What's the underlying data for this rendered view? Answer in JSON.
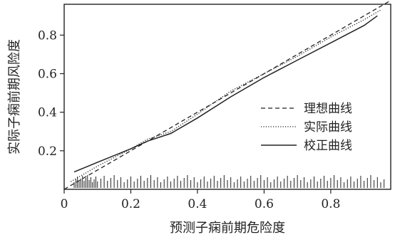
{
  "chart_data": {
    "type": "line",
    "title": "",
    "xlabel": "预测子痫前期危险度",
    "ylabel": "实际子痫前期风险度",
    "xlim": [
      0,
      0.98
    ],
    "ylim": [
      0,
      0.96
    ],
    "x_ticks": [
      0.0,
      0.2,
      0.4,
      0.6,
      0.8
    ],
    "x_tick_labels": [
      "0",
      "0.2",
      "0.4",
      "0.6",
      "0.8"
    ],
    "y_ticks": [
      0.2,
      0.4,
      0.6,
      0.8
    ],
    "y_tick_labels": [
      "0.2",
      "0.4",
      "0.6",
      "0.8"
    ],
    "grid": false,
    "legend_position": "right-middle",
    "series": [
      {
        "name": "理想曲线",
        "style": "dashed",
        "x": [
          0.0,
          0.98
        ],
        "y": [
          0.0,
          0.98
        ]
      },
      {
        "name": "实际曲线",
        "style": "dotted",
        "x": [
          0.02,
          0.1,
          0.2,
          0.25,
          0.32,
          0.4,
          0.5,
          0.6,
          0.7,
          0.8,
          0.9,
          0.95
        ],
        "y": [
          0.04,
          0.12,
          0.21,
          0.26,
          0.3,
          0.39,
          0.51,
          0.6,
          0.69,
          0.79,
          0.88,
          0.93
        ]
      },
      {
        "name": "校正曲线",
        "style": "solid",
        "x": [
          0.03,
          0.1,
          0.2,
          0.25,
          0.32,
          0.4,
          0.5,
          0.6,
          0.7,
          0.8,
          0.9,
          0.94
        ],
        "y": [
          0.09,
          0.14,
          0.21,
          0.25,
          0.29,
          0.37,
          0.48,
          0.58,
          0.67,
          0.76,
          0.85,
          0.9
        ]
      }
    ],
    "rug_x": [
      0.03,
      0.035,
      0.04,
      0.045,
      0.05,
      0.055,
      0.06,
      0.065,
      0.07,
      0.075,
      0.08,
      0.085,
      0.09,
      0.095,
      0.1,
      0.11,
      0.12,
      0.13,
      0.14,
      0.15,
      0.16,
      0.17,
      0.18,
      0.19,
      0.2,
      0.21,
      0.22,
      0.23,
      0.24,
      0.25,
      0.26,
      0.27,
      0.28,
      0.29,
      0.3,
      0.31,
      0.32,
      0.33,
      0.34,
      0.35,
      0.36,
      0.37,
      0.38,
      0.39,
      0.4,
      0.41,
      0.42,
      0.43,
      0.44,
      0.45,
      0.46,
      0.47,
      0.48,
      0.49,
      0.5,
      0.51,
      0.52,
      0.53,
      0.54,
      0.55,
      0.56,
      0.57,
      0.58,
      0.59,
      0.6,
      0.61,
      0.62,
      0.63,
      0.64,
      0.65,
      0.66,
      0.67,
      0.68,
      0.69,
      0.7,
      0.71,
      0.72,
      0.73,
      0.74,
      0.75,
      0.76,
      0.77,
      0.78,
      0.79,
      0.8,
      0.81,
      0.82,
      0.83,
      0.84,
      0.85,
      0.86,
      0.87,
      0.88,
      0.89,
      0.9,
      0.91,
      0.92,
      0.93,
      0.94,
      0.95,
      0.96
    ],
    "colors": {
      "line": "#222222",
      "axis": "#222222",
      "background": "#ffffff"
    }
  }
}
